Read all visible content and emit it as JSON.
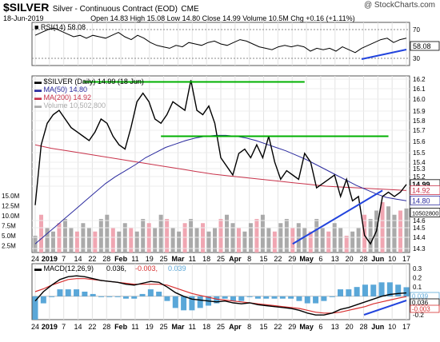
{
  "header": {
    "symbol": "$SILVER",
    "description": "Silver - Continuous Contract (EOD)",
    "exchange": "CME",
    "date": "18-Jun-2019",
    "ohlc": "Open 14.83  High 15.08  Low 14.80  Close 14.99  Volume 10.5M  Chg +0.16 (+1.11%)",
    "watermark": "@ StockCharts.com"
  },
  "colors": {
    "price": "#000000",
    "down": "#b00020",
    "ma50": "#2b2b9f",
    "ma200": "#c8324a",
    "trend_green": "#00b000",
    "trend_blue": "#2244dd",
    "volume_up": "#aaaaaa",
    "volume_down": "#f0a6b2",
    "macd_hist": "#5aa7d8",
    "macd_signal": "#d83030"
  },
  "x_axis_labels": [
    "24",
    "2019",
    "7",
    "14",
    "22",
    "28",
    "Feb",
    "11",
    "19",
    "25",
    "Mar",
    "11",
    "18",
    "25",
    "Apr",
    "8",
    "15",
    "22",
    "29",
    "May",
    "6",
    "13",
    "20",
    "28",
    "Jun",
    "10",
    "17"
  ],
  "chart_data": [
    {
      "type": "line",
      "panel": "rsi",
      "legend": "RSI(14) 58.08",
      "ylim": [
        20,
        80
      ],
      "yticks": [
        "70",
        "50",
        "30"
      ],
      "levels": [
        70,
        30
      ],
      "last_value_label": "58.08",
      "series": [
        {
          "name": "RSI(14)",
          "values": [
            62,
            66,
            70,
            72,
            68,
            64,
            60,
            62,
            58,
            62,
            60,
            58,
            62,
            66,
            60,
            56,
            62,
            58,
            52,
            48,
            46,
            44,
            48,
            46,
            52,
            50,
            48,
            52,
            54,
            50,
            48,
            52,
            56,
            54,
            50,
            46,
            44,
            42,
            46,
            48,
            46,
            48,
            46,
            40,
            44,
            42,
            44,
            40,
            46,
            42,
            38,
            44,
            48,
            52,
            56,
            58,
            52,
            56,
            58
          ]
        }
      ]
    },
    {
      "type": "line",
      "panel": "price",
      "legend": [
        {
          "name": "$SILVER (Daily) 14.99 (18 Jun)",
          "color": "#000000"
        },
        {
          "name": "MA(50) 14.80",
          "color": "#2b2b9f"
        },
        {
          "name": "MA(200) 14.92",
          "color": "#c8324a"
        },
        {
          "name": "Volume 10,502,800",
          "color": "#aaaaaa"
        }
      ],
      "ylim": [
        14.2,
        16.25
      ],
      "yticks": [
        "16.2",
        "16.1",
        "16.0",
        "15.9",
        "15.8",
        "15.7",
        "15.6",
        "15.5",
        "15.4",
        "15.3",
        "15.2",
        "15.1",
        "14.6",
        "14.5",
        "14.4",
        "14.3"
      ],
      "volume_ticks": [
        "15.0M",
        "12.5M",
        "10.0M",
        "7.5M",
        "5.0M",
        "2.5M"
      ],
      "price_tags": [
        {
          "label": "14.99",
          "value": 14.99,
          "style": "close"
        },
        {
          "label": "14.92",
          "value": 14.92,
          "style": "ma200"
        },
        {
          "label": "14.80",
          "value": 14.8,
          "style": "ma50"
        },
        {
          "label": "10502800",
          "value": 14.66,
          "style": "volume"
        }
      ],
      "trendlines": [
        {
          "color": "green",
          "from": [
            8,
            16.18
          ],
          "to": [
            45,
            16.18
          ]
        },
        {
          "color": "green",
          "from": [
            21,
            15.55
          ],
          "to": [
            59,
            15.55
          ]
        },
        {
          "color": "blue",
          "from": [
            43,
            14.3
          ],
          "to": [
            58,
            14.92
          ]
        }
      ],
      "series": [
        {
          "name": "$SILVER (Daily)",
          "values": [
            14.75,
            15.45,
            15.7,
            15.8,
            15.85,
            15.75,
            15.65,
            15.6,
            15.55,
            15.5,
            15.6,
            15.75,
            15.7,
            15.55,
            15.45,
            15.4,
            15.65,
            15.95,
            16.05,
            15.95,
            15.75,
            15.7,
            15.8,
            15.95,
            15.9,
            15.85,
            16.2,
            15.85,
            15.8,
            15.9,
            15.7,
            15.3,
            15.2,
            15.1,
            15.35,
            15.4,
            15.3,
            15.45,
            15.3,
            15.55,
            15.25,
            15.05,
            15.15,
            15.1,
            15.05,
            15.35,
            15.25,
            14.95,
            15.0,
            15.05,
            15.1,
            14.85,
            15.05,
            14.8,
            14.85,
            14.4,
            14.3,
            14.45,
            14.85,
            14.9,
            14.85,
            14.9,
            14.99
          ]
        },
        {
          "name": "MA(50)",
          "values": [
            14.3,
            14.4,
            14.5,
            14.6,
            14.7,
            14.8,
            14.9,
            15.0,
            15.08,
            15.15,
            15.22,
            15.3,
            15.36,
            15.42,
            15.46,
            15.5,
            15.53,
            15.55,
            15.56,
            15.56,
            15.55,
            15.53,
            15.5,
            15.46,
            15.42,
            15.38,
            15.33,
            15.28,
            15.22,
            15.16,
            15.1,
            15.04,
            14.98,
            14.93,
            14.88,
            14.84,
            14.82,
            14.8
          ]
        },
        {
          "name": "MA(200)",
          "values": [
            15.45,
            15.41,
            15.38,
            15.35,
            15.32,
            15.29,
            15.26,
            15.23,
            15.2,
            15.17,
            15.14,
            15.11,
            15.09,
            15.07,
            15.05,
            15.03,
            15.01,
            14.99,
            14.97,
            14.96,
            14.95,
            14.94,
            14.93,
            14.92
          ]
        }
      ]
    },
    {
      "type": "bar",
      "panel": "volume",
      "series": [
        {
          "name": "Volume (M)",
          "values": [
            4,
            9,
            6,
            5,
            7,
            8,
            6,
            5,
            7,
            6,
            5,
            8,
            9,
            6,
            5,
            7,
            6,
            5,
            8,
            7,
            6,
            9,
            8,
            6,
            5,
            7,
            8,
            6,
            7,
            5,
            6,
            8,
            9,
            7,
            6,
            5,
            7,
            8,
            9,
            6,
            5,
            7,
            8,
            6,
            7,
            6,
            5,
            8,
            6,
            5,
            7,
            6,
            4,
            5,
            6,
            9,
            8,
            10,
            12,
            11,
            9,
            10,
            10.5
          ]
        }
      ]
    },
    {
      "type": "line",
      "panel": "macd",
      "legend": [
        {
          "name": "MACD(12,26,9)",
          "color": "#000000"
        },
        {
          "name": "0.036,",
          "color": "#000000"
        },
        {
          "name": "-0.003,",
          "color": "#d83030"
        },
        {
          "name": "0.039",
          "color": "#5aa7d8"
        }
      ],
      "ylim": [
        -0.25,
        0.35
      ],
      "yticks": [
        "0.3",
        "0.2",
        "0.1",
        "0.0",
        "-0.1",
        "-0.2"
      ],
      "value_tags": [
        "0.039",
        "0.036",
        "-0.003"
      ],
      "series": [
        {
          "name": "MACD",
          "values": [
            -0.05,
            0.05,
            0.12,
            0.18,
            0.21,
            0.22,
            0.21,
            0.19,
            0.17,
            0.16,
            0.15,
            0.13,
            0.12,
            0.14,
            0.16,
            0.15,
            0.1,
            0.04,
            0.0,
            -0.03,
            -0.04,
            -0.05,
            -0.06,
            -0.05,
            -0.07,
            -0.08,
            -0.07,
            -0.09,
            -0.1,
            -0.11,
            -0.12,
            -0.13,
            -0.15,
            -0.18,
            -0.2,
            -0.2,
            -0.18,
            -0.14,
            -0.12,
            -0.09,
            -0.06,
            -0.03,
            0.0,
            0.02,
            0.03,
            0.036
          ]
        },
        {
          "name": "Signal",
          "values": [
            0.05,
            0.08,
            0.12,
            0.15,
            0.18,
            0.19,
            0.19,
            0.18,
            0.17,
            0.16,
            0.15,
            0.14,
            0.13,
            0.13,
            0.13,
            0.13,
            0.12,
            0.09,
            0.06,
            0.03,
            0.01,
            -0.01,
            -0.03,
            -0.04,
            -0.05,
            -0.06,
            -0.07,
            -0.08,
            -0.09,
            -0.1,
            -0.11,
            -0.12,
            -0.13,
            -0.15,
            -0.17,
            -0.18,
            -0.18,
            -0.17,
            -0.15,
            -0.13,
            -0.11,
            -0.08,
            -0.06,
            -0.04,
            -0.02,
            -0.003
          ]
        },
        {
          "name": "Histogram",
          "values": [
            -0.1,
            -0.03,
            0.0,
            0.03,
            0.03,
            0.03,
            0.02,
            0.01,
            0.0,
            0.0,
            0.0,
            -0.01,
            -0.01,
            0.01,
            0.03,
            0.02,
            -0.02,
            -0.05,
            -0.06,
            -0.06,
            -0.05,
            -0.04,
            -0.03,
            -0.01,
            -0.02,
            -0.02,
            0.0,
            -0.01,
            -0.01,
            -0.01,
            -0.01,
            -0.01,
            -0.02,
            -0.03,
            -0.03,
            -0.02,
            0.0,
            0.03,
            0.03,
            0.04,
            0.05,
            0.05,
            0.06,
            0.06,
            0.05,
            0.039
          ]
        }
      ]
    }
  ]
}
